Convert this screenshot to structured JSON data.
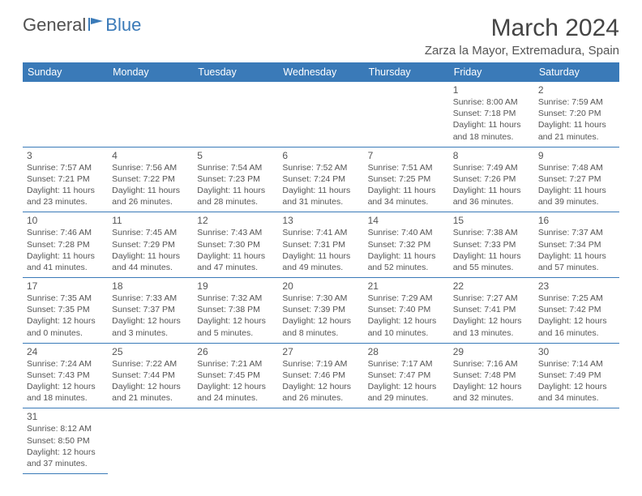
{
  "logo": {
    "part1": "General",
    "part2": "Blue"
  },
  "title": "March 2024",
  "location": "Zarza la Mayor, Extremadura, Spain",
  "colors": {
    "header_bg": "#3a7ab8",
    "border": "#3a7ab8",
    "text": "#555555"
  },
  "dayHeaders": [
    "Sunday",
    "Monday",
    "Tuesday",
    "Wednesday",
    "Thursday",
    "Friday",
    "Saturday"
  ],
  "weeks": [
    [
      null,
      null,
      null,
      null,
      null,
      {
        "n": "1",
        "sr": "Sunrise: 8:00 AM",
        "ss": "Sunset: 7:18 PM",
        "dl": "Daylight: 11 hours and 18 minutes."
      },
      {
        "n": "2",
        "sr": "Sunrise: 7:59 AM",
        "ss": "Sunset: 7:20 PM",
        "dl": "Daylight: 11 hours and 21 minutes."
      }
    ],
    [
      {
        "n": "3",
        "sr": "Sunrise: 7:57 AM",
        "ss": "Sunset: 7:21 PM",
        "dl": "Daylight: 11 hours and 23 minutes."
      },
      {
        "n": "4",
        "sr": "Sunrise: 7:56 AM",
        "ss": "Sunset: 7:22 PM",
        "dl": "Daylight: 11 hours and 26 minutes."
      },
      {
        "n": "5",
        "sr": "Sunrise: 7:54 AM",
        "ss": "Sunset: 7:23 PM",
        "dl": "Daylight: 11 hours and 28 minutes."
      },
      {
        "n": "6",
        "sr": "Sunrise: 7:52 AM",
        "ss": "Sunset: 7:24 PM",
        "dl": "Daylight: 11 hours and 31 minutes."
      },
      {
        "n": "7",
        "sr": "Sunrise: 7:51 AM",
        "ss": "Sunset: 7:25 PM",
        "dl": "Daylight: 11 hours and 34 minutes."
      },
      {
        "n": "8",
        "sr": "Sunrise: 7:49 AM",
        "ss": "Sunset: 7:26 PM",
        "dl": "Daylight: 11 hours and 36 minutes."
      },
      {
        "n": "9",
        "sr": "Sunrise: 7:48 AM",
        "ss": "Sunset: 7:27 PM",
        "dl": "Daylight: 11 hours and 39 minutes."
      }
    ],
    [
      {
        "n": "10",
        "sr": "Sunrise: 7:46 AM",
        "ss": "Sunset: 7:28 PM",
        "dl": "Daylight: 11 hours and 41 minutes."
      },
      {
        "n": "11",
        "sr": "Sunrise: 7:45 AM",
        "ss": "Sunset: 7:29 PM",
        "dl": "Daylight: 11 hours and 44 minutes."
      },
      {
        "n": "12",
        "sr": "Sunrise: 7:43 AM",
        "ss": "Sunset: 7:30 PM",
        "dl": "Daylight: 11 hours and 47 minutes."
      },
      {
        "n": "13",
        "sr": "Sunrise: 7:41 AM",
        "ss": "Sunset: 7:31 PM",
        "dl": "Daylight: 11 hours and 49 minutes."
      },
      {
        "n": "14",
        "sr": "Sunrise: 7:40 AM",
        "ss": "Sunset: 7:32 PM",
        "dl": "Daylight: 11 hours and 52 minutes."
      },
      {
        "n": "15",
        "sr": "Sunrise: 7:38 AM",
        "ss": "Sunset: 7:33 PM",
        "dl": "Daylight: 11 hours and 55 minutes."
      },
      {
        "n": "16",
        "sr": "Sunrise: 7:37 AM",
        "ss": "Sunset: 7:34 PM",
        "dl": "Daylight: 11 hours and 57 minutes."
      }
    ],
    [
      {
        "n": "17",
        "sr": "Sunrise: 7:35 AM",
        "ss": "Sunset: 7:35 PM",
        "dl": "Daylight: 12 hours and 0 minutes."
      },
      {
        "n": "18",
        "sr": "Sunrise: 7:33 AM",
        "ss": "Sunset: 7:37 PM",
        "dl": "Daylight: 12 hours and 3 minutes."
      },
      {
        "n": "19",
        "sr": "Sunrise: 7:32 AM",
        "ss": "Sunset: 7:38 PM",
        "dl": "Daylight: 12 hours and 5 minutes."
      },
      {
        "n": "20",
        "sr": "Sunrise: 7:30 AM",
        "ss": "Sunset: 7:39 PM",
        "dl": "Daylight: 12 hours and 8 minutes."
      },
      {
        "n": "21",
        "sr": "Sunrise: 7:29 AM",
        "ss": "Sunset: 7:40 PM",
        "dl": "Daylight: 12 hours and 10 minutes."
      },
      {
        "n": "22",
        "sr": "Sunrise: 7:27 AM",
        "ss": "Sunset: 7:41 PM",
        "dl": "Daylight: 12 hours and 13 minutes."
      },
      {
        "n": "23",
        "sr": "Sunrise: 7:25 AM",
        "ss": "Sunset: 7:42 PM",
        "dl": "Daylight: 12 hours and 16 minutes."
      }
    ],
    [
      {
        "n": "24",
        "sr": "Sunrise: 7:24 AM",
        "ss": "Sunset: 7:43 PM",
        "dl": "Daylight: 12 hours and 18 minutes."
      },
      {
        "n": "25",
        "sr": "Sunrise: 7:22 AM",
        "ss": "Sunset: 7:44 PM",
        "dl": "Daylight: 12 hours and 21 minutes."
      },
      {
        "n": "26",
        "sr": "Sunrise: 7:21 AM",
        "ss": "Sunset: 7:45 PM",
        "dl": "Daylight: 12 hours and 24 minutes."
      },
      {
        "n": "27",
        "sr": "Sunrise: 7:19 AM",
        "ss": "Sunset: 7:46 PM",
        "dl": "Daylight: 12 hours and 26 minutes."
      },
      {
        "n": "28",
        "sr": "Sunrise: 7:17 AM",
        "ss": "Sunset: 7:47 PM",
        "dl": "Daylight: 12 hours and 29 minutes."
      },
      {
        "n": "29",
        "sr": "Sunrise: 7:16 AM",
        "ss": "Sunset: 7:48 PM",
        "dl": "Daylight: 12 hours and 32 minutes."
      },
      {
        "n": "30",
        "sr": "Sunrise: 7:14 AM",
        "ss": "Sunset: 7:49 PM",
        "dl": "Daylight: 12 hours and 34 minutes."
      }
    ],
    [
      {
        "n": "31",
        "sr": "Sunrise: 8:12 AM",
        "ss": "Sunset: 8:50 PM",
        "dl": "Daylight: 12 hours and 37 minutes."
      },
      null,
      null,
      null,
      null,
      null,
      null
    ]
  ]
}
